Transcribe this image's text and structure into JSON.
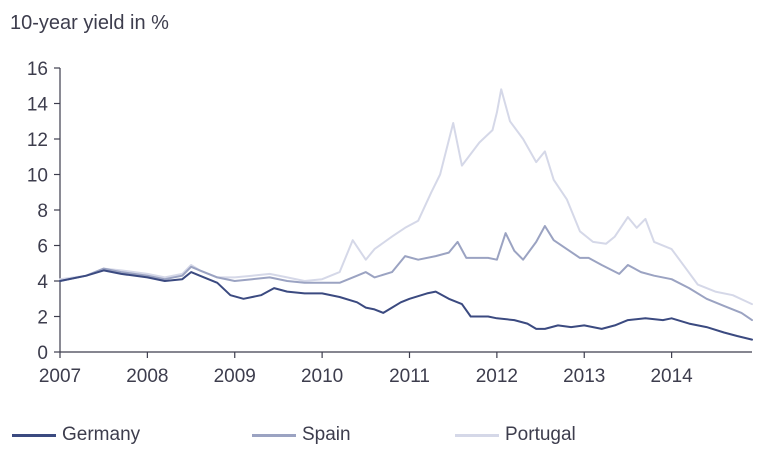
{
  "chart_data": {
    "type": "line",
    "title": "10-year yield in %",
    "xlim": [
      2007,
      2014.92
    ],
    "ylim": [
      0,
      16
    ],
    "x_ticks": [
      2007,
      2008,
      2009,
      2010,
      2011,
      2012,
      2013,
      2014
    ],
    "y_ticks": [
      0,
      2,
      4,
      6,
      8,
      10,
      12,
      14,
      16
    ],
    "grid": false,
    "legend_position": "bottom",
    "series": [
      {
        "name": "Germany",
        "color": "#3b4a80",
        "points": [
          [
            2007.0,
            4.0
          ],
          [
            2007.3,
            4.3
          ],
          [
            2007.5,
            4.6
          ],
          [
            2007.7,
            4.4
          ],
          [
            2008.0,
            4.2
          ],
          [
            2008.2,
            4.0
          ],
          [
            2008.4,
            4.1
          ],
          [
            2008.5,
            4.5
          ],
          [
            2008.6,
            4.3
          ],
          [
            2008.8,
            3.9
          ],
          [
            2008.95,
            3.2
          ],
          [
            2009.1,
            3.0
          ],
          [
            2009.3,
            3.2
          ],
          [
            2009.45,
            3.6
          ],
          [
            2009.6,
            3.4
          ],
          [
            2009.8,
            3.3
          ],
          [
            2010.0,
            3.3
          ],
          [
            2010.2,
            3.1
          ],
          [
            2010.4,
            2.8
          ],
          [
            2010.5,
            2.5
          ],
          [
            2010.6,
            2.4
          ],
          [
            2010.7,
            2.2
          ],
          [
            2010.8,
            2.5
          ],
          [
            2010.9,
            2.8
          ],
          [
            2011.0,
            3.0
          ],
          [
            2011.2,
            3.3
          ],
          [
            2011.3,
            3.4
          ],
          [
            2011.45,
            3.0
          ],
          [
            2011.6,
            2.7
          ],
          [
            2011.7,
            2.0
          ],
          [
            2011.9,
            2.0
          ],
          [
            2012.0,
            1.9
          ],
          [
            2012.2,
            1.8
          ],
          [
            2012.35,
            1.6
          ],
          [
            2012.45,
            1.3
          ],
          [
            2012.55,
            1.3
          ],
          [
            2012.7,
            1.5
          ],
          [
            2012.85,
            1.4
          ],
          [
            2013.0,
            1.5
          ],
          [
            2013.2,
            1.3
          ],
          [
            2013.35,
            1.5
          ],
          [
            2013.5,
            1.8
          ],
          [
            2013.7,
            1.9
          ],
          [
            2013.9,
            1.8
          ],
          [
            2014.0,
            1.9
          ],
          [
            2014.2,
            1.6
          ],
          [
            2014.4,
            1.4
          ],
          [
            2014.6,
            1.1
          ],
          [
            2014.75,
            0.9
          ],
          [
            2014.92,
            0.7
          ]
        ]
      },
      {
        "name": "Spain",
        "color": "#9ba3c2",
        "points": [
          [
            2007.0,
            4.0
          ],
          [
            2007.3,
            4.3
          ],
          [
            2007.5,
            4.7
          ],
          [
            2007.7,
            4.5
          ],
          [
            2008.0,
            4.3
          ],
          [
            2008.2,
            4.1
          ],
          [
            2008.4,
            4.3
          ],
          [
            2008.5,
            4.8
          ],
          [
            2008.6,
            4.6
          ],
          [
            2008.8,
            4.2
          ],
          [
            2009.0,
            4.0
          ],
          [
            2009.2,
            4.1
          ],
          [
            2009.4,
            4.2
          ],
          [
            2009.6,
            4.0
          ],
          [
            2009.8,
            3.9
          ],
          [
            2010.0,
            3.9
          ],
          [
            2010.2,
            3.9
          ],
          [
            2010.4,
            4.3
          ],
          [
            2010.5,
            4.5
          ],
          [
            2010.6,
            4.2
          ],
          [
            2010.8,
            4.5
          ],
          [
            2010.95,
            5.4
          ],
          [
            2011.1,
            5.2
          ],
          [
            2011.3,
            5.4
          ],
          [
            2011.45,
            5.6
          ],
          [
            2011.55,
            6.2
          ],
          [
            2011.65,
            5.3
          ],
          [
            2011.8,
            5.3
          ],
          [
            2011.9,
            5.3
          ],
          [
            2012.0,
            5.2
          ],
          [
            2012.1,
            6.7
          ],
          [
            2012.2,
            5.7
          ],
          [
            2012.3,
            5.2
          ],
          [
            2012.45,
            6.2
          ],
          [
            2012.55,
            7.1
          ],
          [
            2012.65,
            6.3
          ],
          [
            2012.8,
            5.8
          ],
          [
            2012.95,
            5.3
          ],
          [
            2013.05,
            5.3
          ],
          [
            2013.2,
            4.9
          ],
          [
            2013.4,
            4.4
          ],
          [
            2013.5,
            4.9
          ],
          [
            2013.65,
            4.5
          ],
          [
            2013.8,
            4.3
          ],
          [
            2014.0,
            4.1
          ],
          [
            2014.2,
            3.6
          ],
          [
            2014.4,
            3.0
          ],
          [
            2014.6,
            2.6
          ],
          [
            2014.8,
            2.2
          ],
          [
            2014.92,
            1.8
          ]
        ]
      },
      {
        "name": "Portugal",
        "color": "#d5d8e8",
        "points": [
          [
            2007.0,
            4.1
          ],
          [
            2007.3,
            4.3
          ],
          [
            2007.5,
            4.7
          ],
          [
            2007.7,
            4.6
          ],
          [
            2008.0,
            4.4
          ],
          [
            2008.2,
            4.2
          ],
          [
            2008.4,
            4.4
          ],
          [
            2008.5,
            4.9
          ],
          [
            2008.6,
            4.6
          ],
          [
            2008.8,
            4.2
          ],
          [
            2009.0,
            4.2
          ],
          [
            2009.2,
            4.3
          ],
          [
            2009.4,
            4.4
          ],
          [
            2009.6,
            4.2
          ],
          [
            2009.8,
            4.0
          ],
          [
            2010.0,
            4.1
          ],
          [
            2010.2,
            4.5
          ],
          [
            2010.35,
            6.3
          ],
          [
            2010.5,
            5.2
          ],
          [
            2010.6,
            5.8
          ],
          [
            2010.8,
            6.5
          ],
          [
            2010.95,
            7.0
          ],
          [
            2011.1,
            7.4
          ],
          [
            2011.25,
            9.0
          ],
          [
            2011.35,
            10.0
          ],
          [
            2011.5,
            12.9
          ],
          [
            2011.6,
            10.5
          ],
          [
            2011.8,
            11.8
          ],
          [
            2011.95,
            12.5
          ],
          [
            2012.0,
            13.5
          ],
          [
            2012.05,
            14.8
          ],
          [
            2012.15,
            13.0
          ],
          [
            2012.3,
            12.0
          ],
          [
            2012.45,
            10.7
          ],
          [
            2012.55,
            11.3
          ],
          [
            2012.65,
            9.7
          ],
          [
            2012.8,
            8.6
          ],
          [
            2012.95,
            6.8
          ],
          [
            2013.1,
            6.2
          ],
          [
            2013.25,
            6.1
          ],
          [
            2013.35,
            6.5
          ],
          [
            2013.5,
            7.6
          ],
          [
            2013.6,
            7.0
          ],
          [
            2013.7,
            7.5
          ],
          [
            2013.8,
            6.2
          ],
          [
            2014.0,
            5.8
          ],
          [
            2014.15,
            4.8
          ],
          [
            2014.3,
            3.8
          ],
          [
            2014.5,
            3.4
          ],
          [
            2014.7,
            3.2
          ],
          [
            2014.92,
            2.7
          ]
        ]
      }
    ]
  }
}
